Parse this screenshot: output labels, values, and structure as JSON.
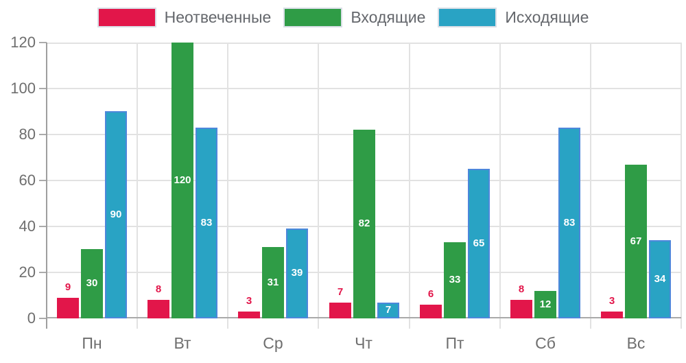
{
  "chart_data": {
    "type": "bar",
    "title": "",
    "categories": [
      "Пн",
      "Вт",
      "Ср",
      "Чт",
      "Пт",
      "Сб",
      "Вс"
    ],
    "series": [
      {
        "name": "Неотвеченные",
        "color": "#e2164a",
        "border_color": "#e2164a",
        "value_label_position": "above",
        "values": [
          9,
          8,
          3,
          7,
          6,
          8,
          3
        ]
      },
      {
        "name": "Входящие",
        "color": "#2f9c46",
        "border_color": "#2f9c46",
        "value_label_position": "inside",
        "values": [
          30,
          120,
          31,
          82,
          33,
          12,
          67
        ]
      },
      {
        "name": "Исходящие",
        "color": "#29a3c4",
        "border_color": "#4d87db",
        "value_label_position": "inside",
        "values": [
          90,
          83,
          39,
          7,
          65,
          83,
          34
        ]
      }
    ],
    "xlabel": "",
    "ylabel": "",
    "ylim": [
      0,
      120
    ],
    "yticks": [
      0,
      20,
      40,
      60,
      80,
      100,
      120
    ],
    "grid": true,
    "legend_position": "top",
    "value_label_color_inside": "#ffffff"
  },
  "style": {
    "background": "#ffffff",
    "axis_text_color": "#6e6e6e",
    "legend_text_color": "#64676c",
    "grid_color": "#e2e2e2",
    "axis_line_color": "#9e9e9e",
    "baseline_color": "#a9a9a9",
    "swatch_border_color": "#d9dee6"
  }
}
